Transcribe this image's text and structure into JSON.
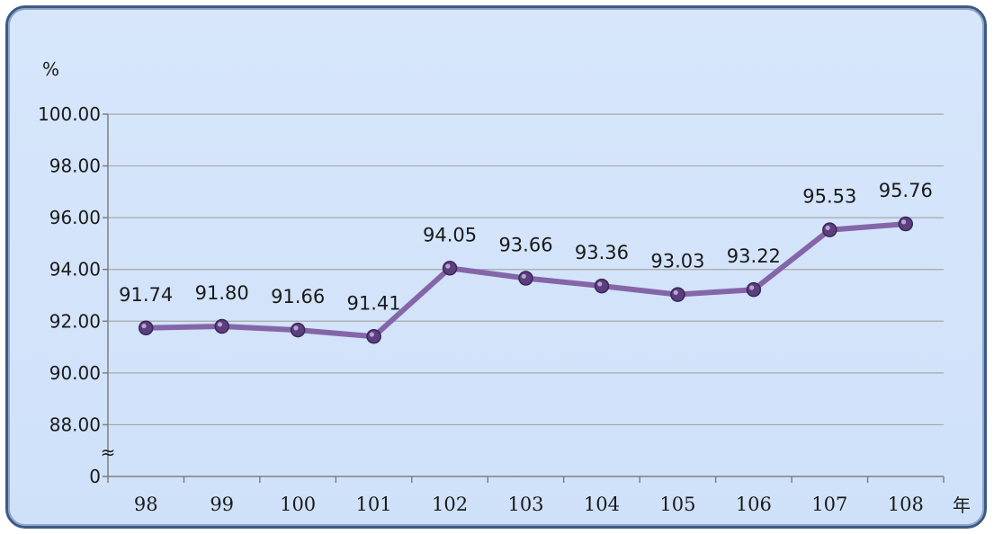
{
  "chart_data": {
    "type": "line",
    "categories": [
      "98",
      "99",
      "100",
      "101",
      "102",
      "103",
      "104",
      "105",
      "106",
      "107",
      "108"
    ],
    "values": [
      91.74,
      91.8,
      91.66,
      91.41,
      94.05,
      93.66,
      93.36,
      93.03,
      93.22,
      95.53,
      95.76
    ],
    "data_labels": [
      "91.74",
      "91.80",
      "91.66",
      "91.41",
      "94.05",
      "93.66",
      "93.36",
      "93.03",
      "93.22",
      "95.53",
      "95.76"
    ],
    "y_ticks": [
      "100.00",
      "98.00",
      "96.00",
      "94.00",
      "92.00",
      "90.00",
      "88.00",
      "0"
    ],
    "y_tick_values": [
      100,
      98,
      96,
      94,
      92,
      90,
      88,
      86
    ],
    "ylim": [
      86,
      100
    ],
    "y_axis_break": true,
    "y_unit": "%",
    "x_unit": "年",
    "grid": true,
    "colors": {
      "line": "#8466a8",
      "marker": "#5b3f7e",
      "grid": "#a7a7a7",
      "axis": "#7f7f7f",
      "background": "#d3e3fa",
      "border": "#3d5a86"
    }
  }
}
